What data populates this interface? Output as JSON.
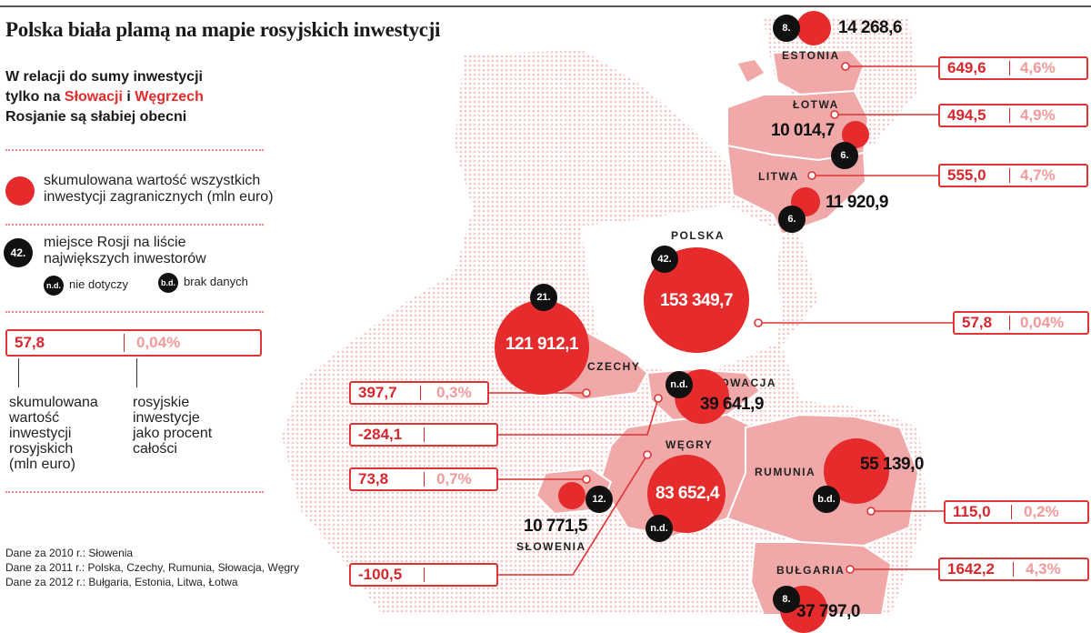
{
  "title": "Polska biała plamą na mapie rosyjskich inwestycji",
  "subtitle": {
    "line1": "W relacji do sumy inwestycji",
    "line2_pre": "tylko na ",
    "line2_red1": "Słowacji",
    "line2_mid": " i ",
    "line2_red2": "Węgrzech",
    "line3": "Rosjanie są słabiej obecni"
  },
  "legend": {
    "dot_text_1": "skumulowana wartość wszystkich",
    "dot_text_2": "inwestycji zagranicznych (mln euro)",
    "badge_example": "42.",
    "badge_text_1": "miejsce Rosji na liście",
    "badge_text_2": "największych inwestorów",
    "nd_badge": "n.d.",
    "nd_text": "nie dotyczy",
    "bd_badge": "b.d.",
    "bd_text": "brak danych",
    "box_value": "57,8",
    "box_pct": "0,04%",
    "left_label": [
      "skumulowana",
      "wartość",
      "inwestycji",
      "rosyjskich",
      "(mln euro)"
    ],
    "right_label": [
      "rosyjskie",
      "inwestycje",
      "jako procent",
      "całości"
    ]
  },
  "sources": [
    "Dane za 2010 r.: Słowenia",
    "Dane za 2011 r.: Polska, Czechy, Rumunia, Słowacja, Węgry",
    "Dane za 2012 r.: Bułgaria, Estonia, Litwa, Łotwa"
  ],
  "countries": [
    {
      "name": "ESTONIA",
      "rank": "8.",
      "total": "14 268,6",
      "russia": "649,6",
      "pct": "4,6%"
    },
    {
      "name": "ŁOTWA",
      "rank": "6.",
      "total": "10 014,7",
      "russia": "494,5",
      "pct": "4,9%"
    },
    {
      "name": "LITWA",
      "rank": "6.",
      "total": "11 920,9",
      "russia": "555,0",
      "pct": "4,7%"
    },
    {
      "name": "POLSKA",
      "rank": "42.",
      "total": "153 349,7",
      "russia": "57,8",
      "pct": "0,04%"
    },
    {
      "name": "CZECHY",
      "rank": "21.",
      "total": "121 912,1",
      "russia": "397,7",
      "pct": "0,3%"
    },
    {
      "name": "SŁOWACJA",
      "rank": "n.d.",
      "total": "39 641,9",
      "russia": "-284,1",
      "pct": ""
    },
    {
      "name": "WĘGRY",
      "rank": "n.d.",
      "total": "83 652,4",
      "russia": "-100,5",
      "pct": ""
    },
    {
      "name": "SŁOWENIA",
      "rank": "12.",
      "total": "10 771,5",
      "russia": "73,8",
      "pct": "0,7%"
    },
    {
      "name": "RUMUNIA",
      "rank": "b.d.",
      "total": "55 139,0",
      "russia": "115,0",
      "pct": "0,2%"
    },
    {
      "name": "BUŁGARIA",
      "rank": "8.",
      "total": "37 797,0",
      "russia": "1642,2",
      "pct": "4,3%"
    }
  ],
  "colors": {
    "accent": "#e52b2b",
    "country_fill": "#f0a8a8",
    "dots": "#f5c9c9",
    "badge": "#111111"
  }
}
